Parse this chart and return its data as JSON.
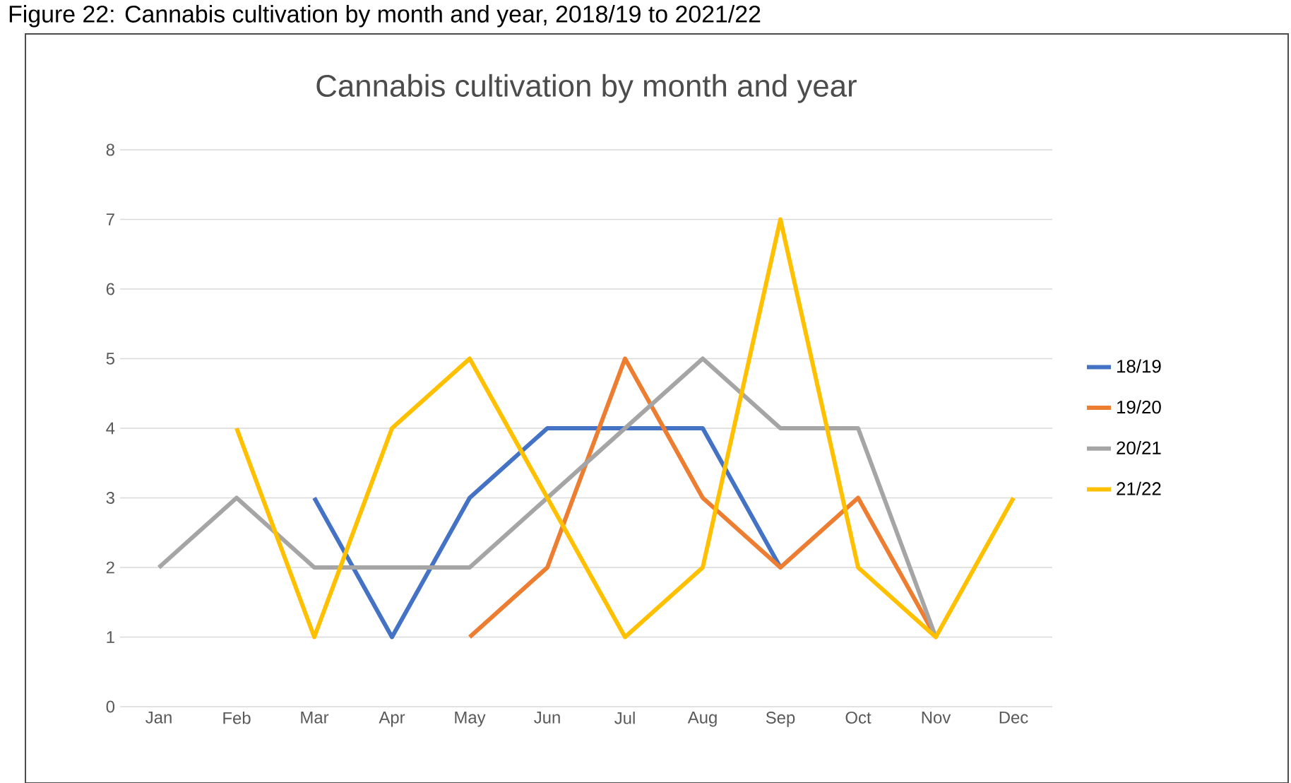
{
  "chart_data": {
    "type": "line",
    "title": "Cannabis cultivation by month and year",
    "annotations": [
      "Figure 22: Cannabis cultivation by month and year, 2018/19 to 2021/22"
    ],
    "categories": [
      "Jan",
      "Feb",
      "Mar",
      "Apr",
      "May",
      "Jun",
      "Jul",
      "Aug",
      "Sep",
      "Oct",
      "Nov",
      "Dec"
    ],
    "series": [
      {
        "name": "18/19",
        "color": "#4472c4",
        "values": [
          null,
          null,
          3,
          1,
          3,
          4,
          4,
          4,
          2,
          null,
          null,
          null
        ]
      },
      {
        "name": "19/20",
        "color": "#ed7d31",
        "values": [
          null,
          null,
          null,
          null,
          1,
          2,
          5,
          3,
          2,
          3,
          1,
          null
        ]
      },
      {
        "name": "20/21",
        "color": "#a5a5a5",
        "values": [
          2,
          3,
          2,
          2,
          2,
          3,
          4,
          5,
          4,
          4,
          1,
          null
        ]
      },
      {
        "name": "21/22",
        "color": "#ffc000",
        "values": [
          null,
          4,
          1,
          4,
          5,
          3,
          1,
          2,
          7,
          2,
          1,
          3
        ]
      }
    ],
    "ylim": [
      0,
      8
    ],
    "yticks": [
      0,
      1,
      2,
      3,
      4,
      5,
      6,
      7,
      8
    ],
    "grid": "y",
    "legend": "right",
    "marker": "none",
    "line_style": "solid"
  }
}
